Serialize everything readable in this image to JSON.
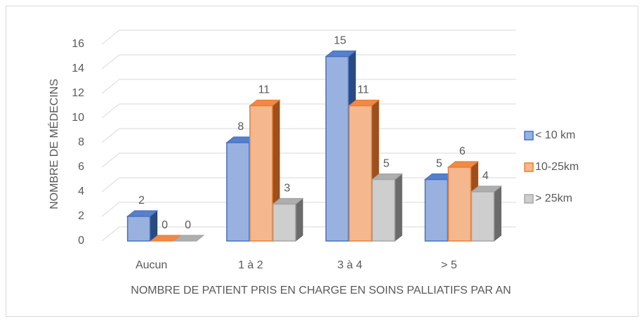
{
  "chart_data": {
    "type": "bar3d",
    "categories": [
      "Aucun",
      "1 à 2",
      "3 à 4",
      "> 5"
    ],
    "series": [
      {
        "name": "< 10 km",
        "color": "#4472c4",
        "values": [
          2,
          8,
          15,
          5
        ]
      },
      {
        "name": "10-25km",
        "color": "#ed7d31",
        "values": [
          0,
          11,
          11,
          6
        ]
      },
      {
        "name": "> 25km",
        "color": "#a5a5a5",
        "values": [
          0,
          3,
          5,
          4
        ]
      }
    ],
    "ylim": [
      0,
      16
    ],
    "yticks": [
      0,
      2,
      4,
      6,
      8,
      10,
      12,
      14,
      16
    ],
    "y_label": "NOMBRE DE MÉDECINS",
    "x_label": "NOMBRE DE PATIENT PRIS EN CHARGE EN SOINS PALLIATIFS PAR AN",
    "grid": true,
    "legend": "right"
  }
}
